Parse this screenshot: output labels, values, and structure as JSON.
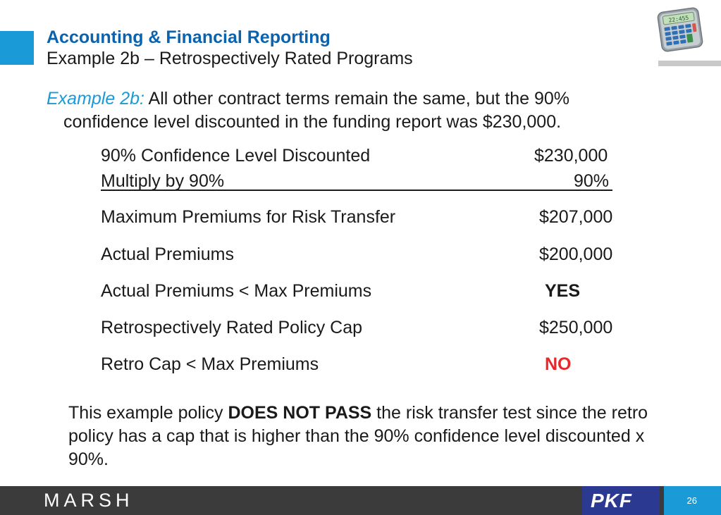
{
  "header": {
    "title": "Accounting & Financial Reporting",
    "subtitle": "Example 2b – Retrospectively Rated Programs"
  },
  "intro": {
    "label": "Example 2b:",
    "line1_rest": " All other contract terms remain the same, but the 90%",
    "line2": "confidence level discounted in the funding report was $230,000."
  },
  "rows": [
    {
      "label": "90% Confidence Level Discounted",
      "value": "$230,000"
    },
    {
      "label": "Multiply by 90%",
      "value": "90%"
    },
    {
      "label": "Maximum Premiums for Risk Transfer",
      "value": "$207,000"
    },
    {
      "label": "Actual Premiums",
      "value": "$200,000"
    },
    {
      "label": "Actual Premiums < Max Premiums",
      "value": "YES"
    },
    {
      "label": "Retrospectively Rated Policy Cap",
      "value": "$250,000"
    },
    {
      "label": "Retro Cap < Max Premiums",
      "value": "NO"
    }
  ],
  "conclusion": {
    "pre": "This example policy ",
    "bold": "DOES NOT PASS",
    "post": " the risk transfer test since the retro policy has a cap that is higher than the 90% confidence level discounted x 90%."
  },
  "calculator_display": "22:455",
  "footer": {
    "left_logo": "MARSH",
    "right_logo": "PKF",
    "page_number": "26"
  },
  "colors": {
    "accent_blue": "#1a9ad6",
    "title_blue": "#0b63ae",
    "no_red": "#e8282b",
    "footer_gray": "#3b3b3b",
    "pkf_navy": "#2b3990"
  },
  "icons": [
    "calculator-icon"
  ]
}
